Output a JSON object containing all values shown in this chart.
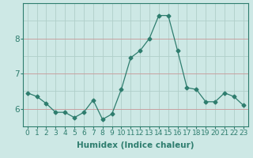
{
  "x": [
    0,
    1,
    2,
    3,
    4,
    5,
    6,
    7,
    8,
    9,
    10,
    11,
    12,
    13,
    14,
    15,
    16,
    17,
    18,
    19,
    20,
    21,
    22,
    23
  ],
  "y": [
    6.45,
    6.35,
    6.15,
    5.9,
    5.9,
    5.75,
    5.9,
    6.25,
    5.7,
    5.85,
    6.55,
    7.45,
    7.65,
    8.0,
    8.65,
    8.65,
    7.65,
    6.6,
    6.55,
    6.2,
    6.2,
    6.45,
    6.35,
    6.1
  ],
  "line_color": "#2e7d6e",
  "marker": "D",
  "marker_size": 2.5,
  "bg_color": "#cde8e5",
  "grid_color_v": "#b0cec9",
  "grid_color_h_main": "#c8a0a0",
  "grid_color_h_minor": "#b0cec9",
  "axis_color": "#2e7d6e",
  "xlabel": "Humidex (Indice chaleur)",
  "ylim": [
    5.5,
    9.0
  ],
  "xlim": [
    -0.5,
    23.5
  ],
  "yticks": [
    6,
    7,
    8
  ],
  "xtick_labels": [
    "0",
    "1",
    "2",
    "3",
    "4",
    "5",
    "6",
    "7",
    "8",
    "9",
    "10",
    "11",
    "12",
    "13",
    "14",
    "15",
    "16",
    "17",
    "18",
    "19",
    "20",
    "21",
    "22",
    "23"
  ],
  "label_fontsize": 7.5,
  "tick_fontsize": 6.5
}
